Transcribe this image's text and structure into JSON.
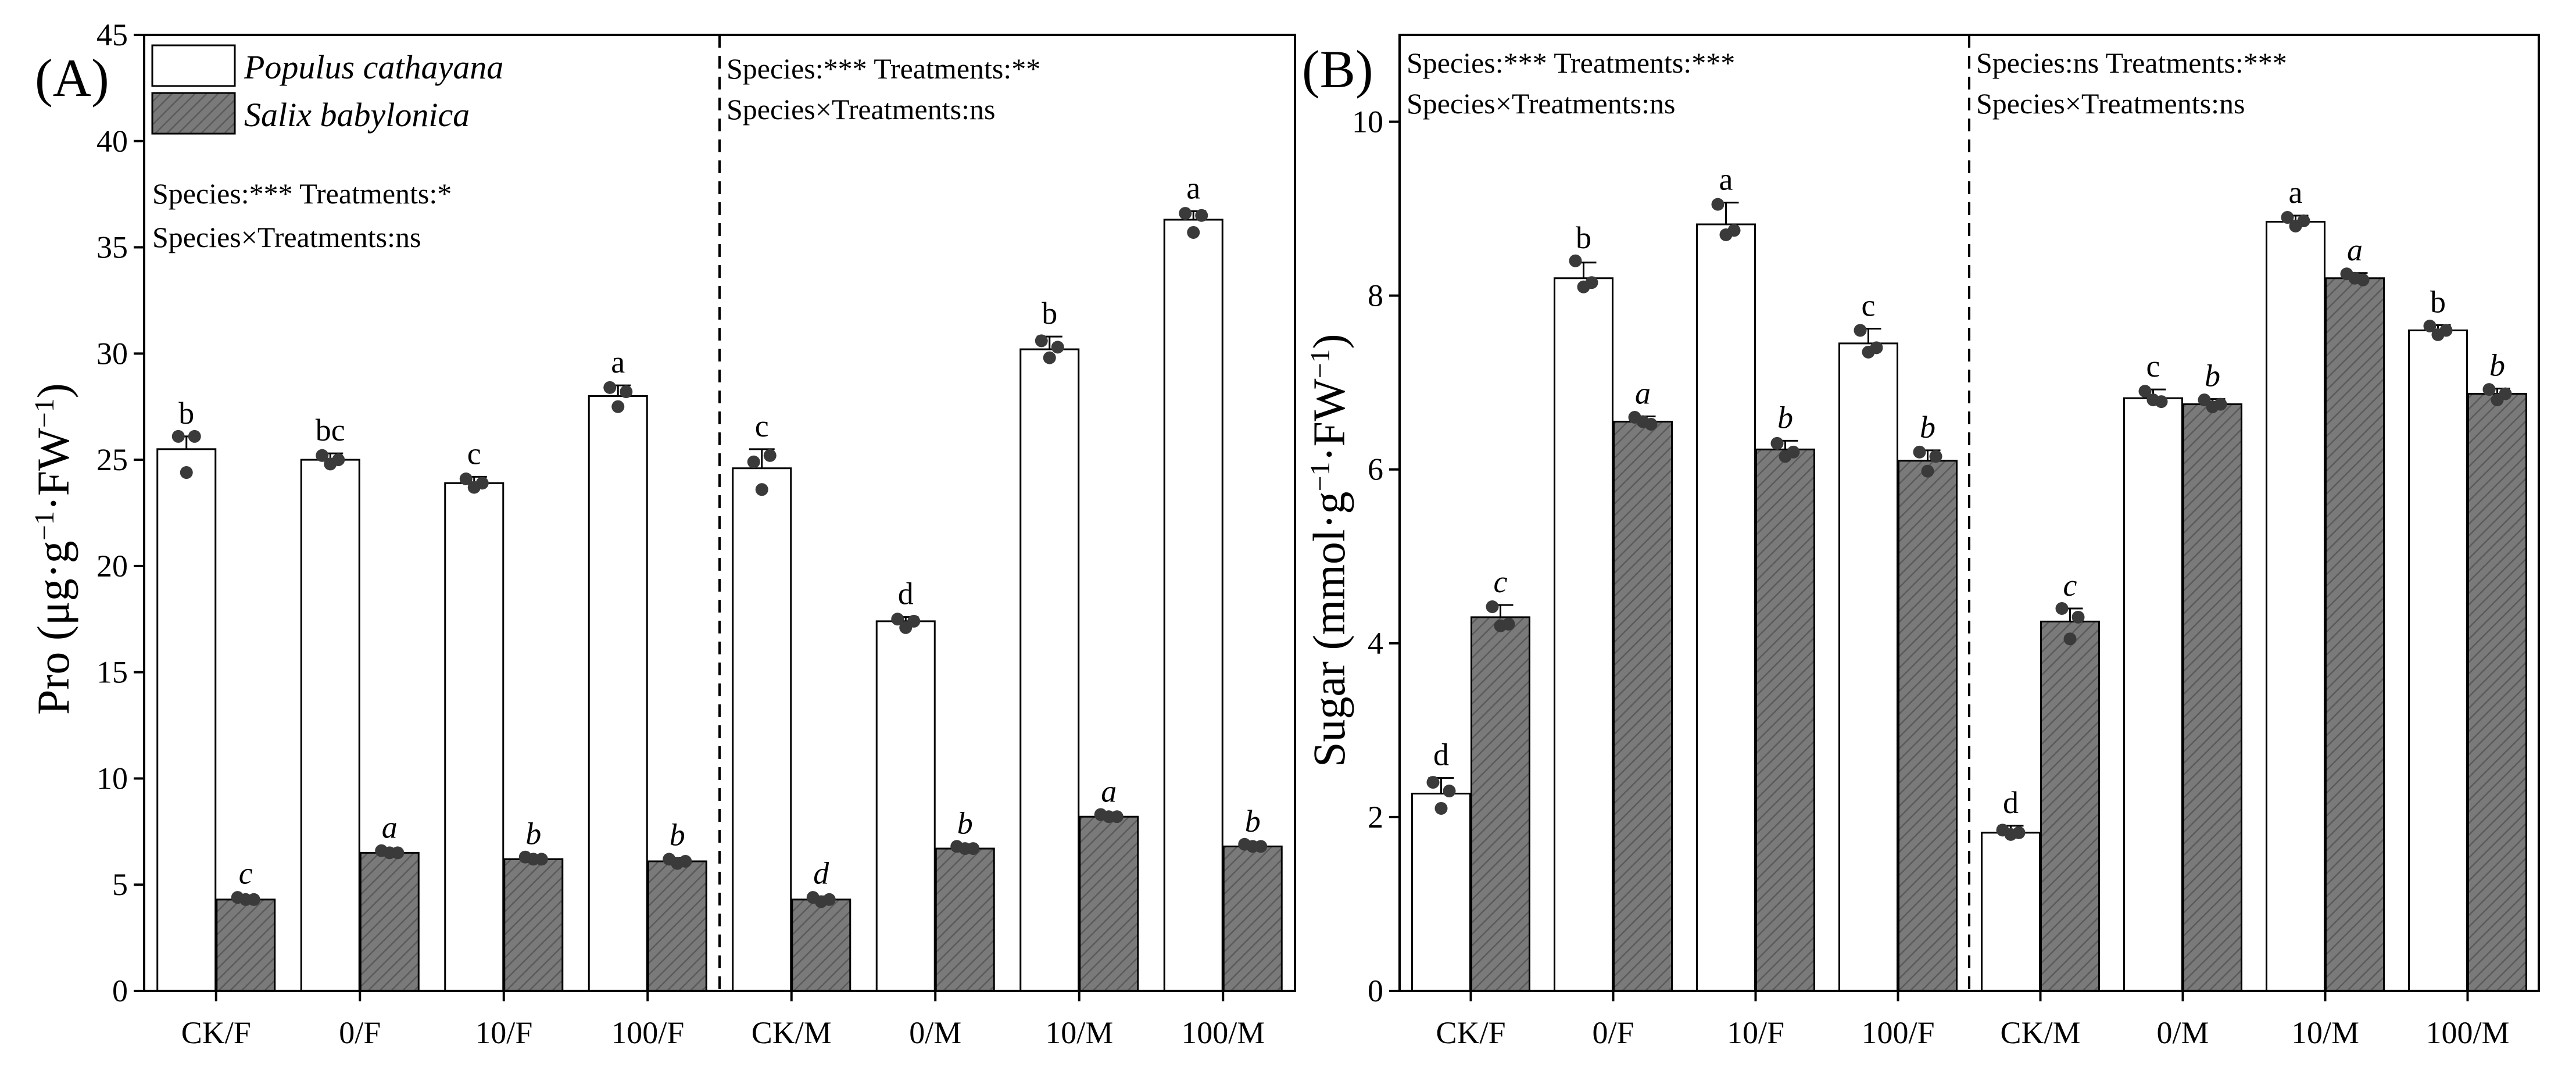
{
  "colors": {
    "populus_fill": "#ffffff",
    "salix_fill": "#7a7a7a",
    "hatch": "#5a5a5a",
    "dot": "#3a3a3a",
    "stroke": "#000000"
  },
  "legend": {
    "items": [
      {
        "name": "Populus cathayana",
        "style": "open"
      },
      {
        "name": "Salix babylonica",
        "style": "hatched"
      }
    ],
    "placement": "top-left of panel A"
  },
  "chart_data": [
    {
      "panel": "(A)",
      "type": "bar",
      "ylabel_main": "Pro (μg·g",
      "ylabel_sup": "−1",
      "ylabel_tail": "·FW",
      "ylabel_sup2": "−1",
      "ylabel_close": ")",
      "ylim": [
        0,
        45
      ],
      "yticks": [
        0,
        5,
        10,
        15,
        20,
        25,
        30,
        35,
        40,
        45
      ],
      "categories": [
        "CK/F",
        "0/F",
        "10/F",
        "100/F",
        "CK/M",
        "0/M",
        "10/M",
        "100/M"
      ],
      "series": [
        {
          "name": "Populus cathayana",
          "values": [
            25.5,
            25.0,
            23.9,
            28.0,
            24.6,
            17.4,
            30.2,
            36.3
          ],
          "errors": [
            0.6,
            0.3,
            0.3,
            0.5,
            0.9,
            0.2,
            0.6,
            0.4
          ],
          "points": [
            [
              26.1,
              24.4,
              26.1
            ],
            [
              25.2,
              24.8,
              25.0
            ],
            [
              24.1,
              23.7,
              23.9
            ],
            [
              28.4,
              27.5,
              28.2
            ],
            [
              24.9,
              23.6,
              25.2
            ],
            [
              17.5,
              17.1,
              17.4
            ],
            [
              30.6,
              29.8,
              30.3
            ],
            [
              36.6,
              35.7,
              36.5
            ]
          ],
          "labels": [
            "b",
            "bc",
            "c",
            "a",
            "c",
            "d",
            "b",
            "a"
          ]
        },
        {
          "name": "Salix babylonica",
          "values": [
            4.3,
            6.5,
            6.2,
            6.1,
            4.3,
            6.7,
            8.2,
            6.8
          ],
          "errors": [
            0.15,
            0.1,
            0.1,
            0.15,
            0.15,
            0.1,
            0.1,
            0.1
          ],
          "points": [
            [
              4.4,
              4.3,
              4.3
            ],
            [
              6.6,
              6.5,
              6.5
            ],
            [
              6.3,
              6.2,
              6.2
            ],
            [
              6.2,
              6.0,
              6.1
            ],
            [
              4.4,
              4.2,
              4.3
            ],
            [
              6.8,
              6.7,
              6.7
            ],
            [
              8.3,
              8.2,
              8.2
            ],
            [
              6.9,
              6.8,
              6.8
            ]
          ],
          "labels": [
            "c",
            "a",
            "b",
            "b",
            "d",
            "b",
            "a",
            "b"
          ]
        }
      ],
      "stats": [
        {
          "line1": "Species:***  Treatments:*",
          "line2": "Species×Treatments:ns"
        },
        {
          "line1": "Species:***  Treatments:**",
          "line2": "Species×Treatments:ns"
        }
      ]
    },
    {
      "panel": "(B)",
      "type": "bar",
      "ylabel_main": "Sugar (mmol·g",
      "ylabel_sup": "−1",
      "ylabel_tail": "·FW",
      "ylabel_sup2": "−1",
      "ylabel_close": ")",
      "ylim": [
        0,
        11
      ],
      "yticks": [
        0,
        2,
        4,
        6,
        8,
        10
      ],
      "categories": [
        "CK/F",
        "0/F",
        "10/F",
        "100/F",
        "CK/M",
        "0/M",
        "10/M",
        "100/M"
      ],
      "series": [
        {
          "name": "Populus cathayana",
          "values": [
            2.27,
            8.2,
            8.82,
            7.45,
            1.82,
            6.82,
            8.85,
            7.6
          ],
          "errors": [
            0.18,
            0.18,
            0.25,
            0.17,
            0.08,
            0.1,
            0.07,
            0.06
          ],
          "points": [
            [
              2.4,
              2.1,
              2.3
            ],
            [
              8.4,
              8.1,
              8.15
            ],
            [
              9.05,
              8.7,
              8.75
            ],
            [
              7.6,
              7.35,
              7.4
            ],
            [
              1.85,
              1.8,
              1.82
            ],
            [
              6.9,
              6.8,
              6.78
            ],
            [
              8.9,
              8.8,
              8.86
            ],
            [
              7.65,
              7.55,
              7.6
            ]
          ],
          "labels": [
            "d",
            "b",
            "a",
            "c",
            "d",
            "c",
            "a",
            "b"
          ]
        },
        {
          "name": "Salix babylonica",
          "values": [
            4.3,
            6.55,
            6.23,
            6.1,
            4.25,
            6.75,
            8.2,
            6.87
          ],
          "errors": [
            0.14,
            0.06,
            0.1,
            0.12,
            0.15,
            0.06,
            0.06,
            0.06
          ],
          "points": [
            [
              4.42,
              4.2,
              4.22
            ],
            [
              6.6,
              6.55,
              6.52
            ],
            [
              6.3,
              6.15,
              6.2
            ],
            [
              6.2,
              5.98,
              6.15
            ],
            [
              4.4,
              4.05,
              4.3
            ],
            [
              6.8,
              6.72,
              6.75
            ],
            [
              8.25,
              8.2,
              8.18
            ],
            [
              6.92,
              6.8,
              6.87
            ]
          ],
          "labels": [
            "c",
            "a",
            "b",
            "b",
            "c",
            "b",
            "a",
            "b"
          ]
        }
      ],
      "stats": [
        {
          "line1": "Species:***  Treatments:***",
          "line2": "Species×Treatments:ns"
        },
        {
          "line1": "Species:ns  Treatments:***",
          "line2": "Species×Treatments:ns"
        }
      ]
    }
  ]
}
